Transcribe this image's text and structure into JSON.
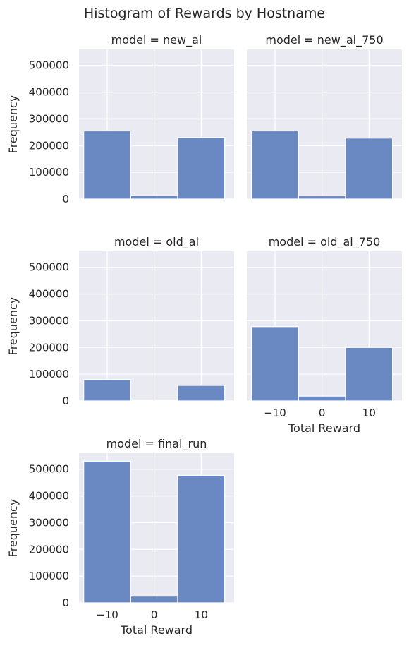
{
  "chart_data": {
    "type": "bar",
    "title": "Histogram of Rewards by Hostname",
    "xlabel": "Total Reward",
    "ylabel": "Frequency",
    "xlim": [
      -16,
      17
    ],
    "ylim": [
      0,
      560000
    ],
    "xticks": [
      -10,
      0,
      10
    ],
    "xtick_labels": [
      "−10",
      "0",
      "10"
    ],
    "yticks": [
      0,
      100000,
      200000,
      300000,
      400000,
      500000
    ],
    "ytick_labels": [
      "0",
      "100000",
      "200000",
      "300000",
      "400000",
      "500000"
    ],
    "bin_edges": [
      -15,
      -5,
      5,
      15
    ],
    "grid": true,
    "bar_color": "#6a89c2",
    "background_color": "#eaeaf2",
    "panels": [
      {
        "label": "model = new_ai",
        "counts": [
          255000,
          13000,
          230000
        ],
        "show_ylabel": true,
        "show_yticks": true,
        "show_xticks": false
      },
      {
        "label": "model = new_ai_750",
        "counts": [
          255000,
          12000,
          228000
        ],
        "show_ylabel": false,
        "show_yticks": false,
        "show_xticks": false
      },
      {
        "label": "model = old_ai",
        "counts": [
          80000,
          3000,
          58000
        ],
        "show_ylabel": true,
        "show_yticks": true,
        "show_xticks": false
      },
      {
        "label": "model = old_ai_750",
        "counts": [
          278000,
          18000,
          200000
        ],
        "show_ylabel": false,
        "show_yticks": false,
        "show_xticks": true
      },
      {
        "label": "model = final_run",
        "counts": [
          530000,
          25000,
          477000
        ],
        "show_ylabel": true,
        "show_yticks": true,
        "show_xticks": true
      }
    ]
  }
}
